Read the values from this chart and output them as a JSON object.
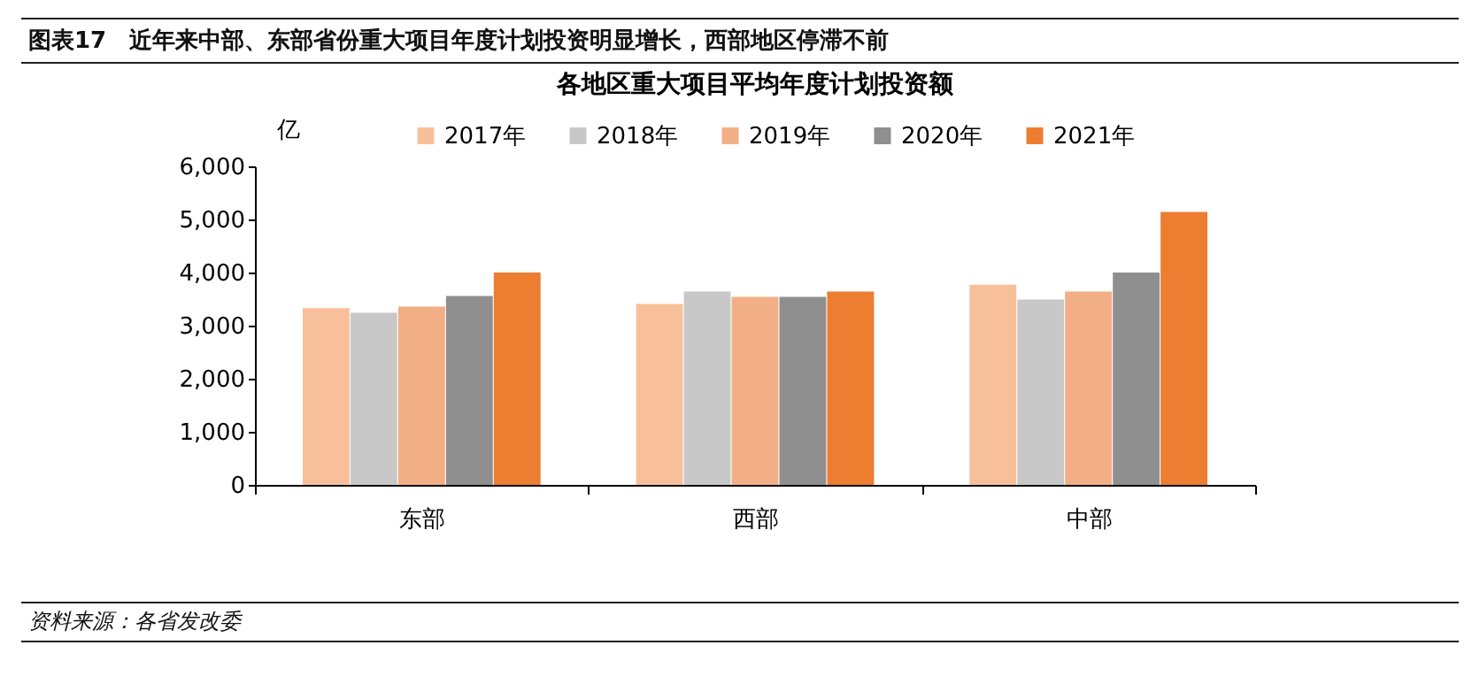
{
  "chart_data": {
    "type": "bar",
    "title": "图表17　近年来中部、东部省份重大项目年度计划投资明显增长，西部地区停滞不前",
    "subtitle": "各地区重大项目平均年度计划投资额",
    "ylabel": "亿",
    "categories": [
      "东部",
      "西部",
      "中部"
    ],
    "series": [
      {
        "name": "2017年",
        "color": "#f8c09a",
        "values": [
          3330,
          3410,
          3770
        ]
      },
      {
        "name": "2018年",
        "color": "#c8c8c8",
        "values": [
          3240,
          3640,
          3490
        ]
      },
      {
        "name": "2019年",
        "color": "#f2ae84",
        "values": [
          3360,
          3540,
          3640
        ]
      },
      {
        "name": "2020年",
        "color": "#8f8f8f",
        "values": [
          3560,
          3540,
          4000
        ]
      },
      {
        "name": "2021年",
        "color": "#ed7d31",
        "values": [
          4000,
          3640,
          5140
        ]
      }
    ],
    "ylim": [
      0,
      6000
    ],
    "yticks": [
      0,
      {
        "value": 1000,
        "label": "1,000"
      },
      {
        "value": 2000,
        "label": "2,000"
      },
      {
        "value": 3000,
        "label": "3,000"
      },
      {
        "value": 4000,
        "label": "4,000"
      },
      {
        "value": 5000,
        "label": "5,000"
      },
      {
        "value": 6000,
        "label": "6,000"
      }
    ],
    "grid": false,
    "legend": "top",
    "annotations": [
      "资料来源：各省发改委"
    ]
  }
}
